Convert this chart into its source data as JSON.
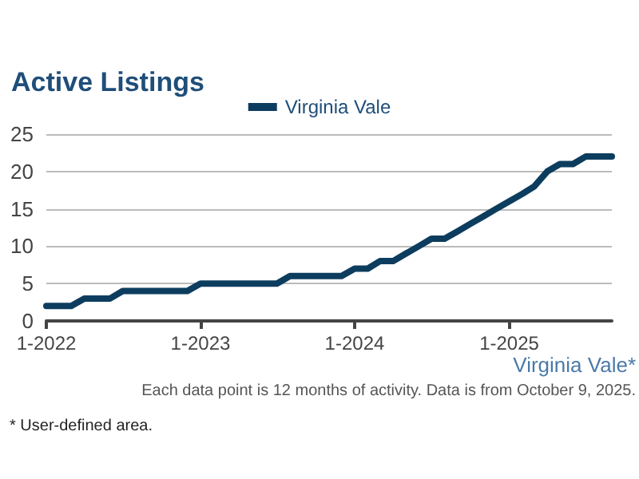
{
  "chart_data": {
    "type": "line",
    "title": "Active Listings",
    "x": [
      "2022-01",
      "2022-02",
      "2022-03",
      "2022-04",
      "2022-05",
      "2022-06",
      "2022-07",
      "2022-08",
      "2022-09",
      "2022-10",
      "2022-11",
      "2022-12",
      "2023-01",
      "2023-02",
      "2023-03",
      "2023-04",
      "2023-05",
      "2023-06",
      "2023-07",
      "2023-08",
      "2023-09",
      "2023-10",
      "2023-11",
      "2023-12",
      "2024-01",
      "2024-02",
      "2024-03",
      "2024-04",
      "2024-05",
      "2024-06",
      "2024-07",
      "2024-08",
      "2024-09",
      "2024-10",
      "2024-11",
      "2024-12",
      "2025-01",
      "2025-02",
      "2025-03",
      "2025-04",
      "2025-05",
      "2025-06",
      "2025-07",
      "2025-08",
      "2025-09"
    ],
    "series": [
      {
        "name": "Virginia Vale",
        "color": "#0d3d5e",
        "values": [
          2,
          2,
          2,
          3,
          3,
          3,
          4,
          4,
          4,
          4,
          4,
          4,
          5,
          5,
          5,
          5,
          5,
          5,
          5,
          6,
          6,
          6,
          6,
          6,
          7,
          7,
          8,
          8,
          9,
          10,
          11,
          11,
          12,
          13,
          14,
          15,
          16,
          17,
          18,
          20,
          21,
          21,
          22,
          22,
          22
        ]
      }
    ],
    "xlim": [
      "2022-01",
      "2025-09"
    ],
    "xticks": [
      {
        "value": "2022-01",
        "label": "1-2022"
      },
      {
        "value": "2023-01",
        "label": "1-2023"
      },
      {
        "value": "2024-01",
        "label": "1-2024"
      },
      {
        "value": "2025-01",
        "label": "1-2025"
      }
    ],
    "ylim": [
      0,
      25
    ],
    "yticks": [
      0,
      5,
      10,
      15,
      20,
      25
    ],
    "grid": "y",
    "legend": "top",
    "marker": "none",
    "line_style": "solid",
    "annotations": [
      "Virginia Vale*",
      "Each data point is 12 months of activity. Data is from October 9, 2025.",
      "* User-defined area."
    ]
  }
}
